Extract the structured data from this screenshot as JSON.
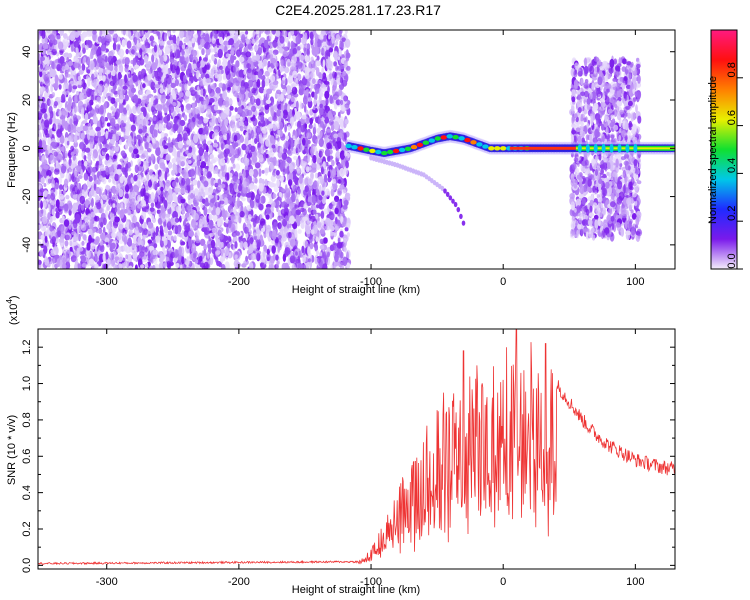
{
  "title": "C2E4.2025.281.17.23.R17",
  "chart_data": [
    {
      "type": "heatmap",
      "name": "spectrogram",
      "xlabel": "Height of straight line (km)",
      "ylabel": "Frequency (Hz)",
      "xlim": [
        -352,
        130
      ],
      "ylim": [
        -50,
        49
      ],
      "xticks": [
        -300,
        -200,
        -100,
        0,
        100
      ],
      "yticks": [
        -40,
        -20,
        0,
        20,
        40
      ],
      "colorbar": {
        "label": "Normalized spectral amplitude",
        "range": [
          0,
          1
        ],
        "ticks": [
          "0.0",
          "0.2",
          "0.4",
          "0.6",
          "0.8"
        ],
        "tick_values": [
          0,
          0.2,
          0.4,
          0.6,
          0.8
        ],
        "stops": [
          "#f4eefb",
          "#7a1aeb",
          "#1f2bff",
          "#00c8e8",
          "#10e030",
          "#e8f000",
          "#ff8000",
          "#ff1010",
          "#ff1a80"
        ]
      },
      "regions": [
        {
          "desc": "broadband noise",
          "x_range": [
            -352,
            -117
          ],
          "f_range": [
            -50,
            49
          ],
          "color": "#7a1aeb"
        },
        {
          "desc": "broadband noise",
          "x_range": [
            52,
            103
          ],
          "f_range": [
            -37,
            37
          ],
          "color": "#7a1aeb"
        }
      ],
      "ridge": {
        "x": [
          -117,
          -100,
          -90,
          -80,
          -70,
          -60,
          -50,
          -40,
          -30,
          -20,
          -10,
          0,
          10,
          30,
          50,
          70,
          100,
          130
        ],
        "f": [
          1,
          -1,
          -2,
          -1,
          0,
          2,
          4,
          5,
          4,
          2,
          0,
          0,
          0,
          0,
          0,
          0,
          0,
          0
        ]
      },
      "branch": {
        "x": [
          -100,
          -80,
          -60,
          -45,
          -35,
          -30
        ],
        "f": [
          -4,
          -7,
          -11,
          -17,
          -24,
          -31
        ]
      }
    },
    {
      "type": "line",
      "name": "snr",
      "xlabel": "Height of straight line (km)",
      "ylabel": "SNR (10 * v/v)",
      "scale_note": "(x10",
      "scale_exp": "4",
      "scale_close": ")",
      "xlim": [
        -352,
        130
      ],
      "ylim": [
        -0.02,
        1.3
      ],
      "xticks": [
        -300,
        -200,
        -100,
        0,
        100
      ],
      "yticks": [
        0.0,
        0.2,
        0.4,
        0.6,
        0.8,
        1.0,
        1.2
      ],
      "ytick_labels": [
        "0.0",
        "0.2",
        "0.4",
        "0.6",
        "0.8",
        "1.0",
        "1.2"
      ],
      "color": "#ee3333",
      "envelope": {
        "x": [
          -352,
          -110,
          -100,
          -90,
          -80,
          -70,
          -60,
          -50,
          -40,
          -30,
          -20,
          -10,
          0,
          10,
          20,
          30,
          40,
          50,
          60,
          70,
          80,
          90,
          100,
          110,
          120,
          130
        ],
        "y": [
          0.01,
          0.02,
          0.08,
          0.22,
          0.38,
          0.5,
          0.62,
          0.72,
          0.82,
          0.88,
          0.92,
          0.95,
          1.0,
          1.05,
          1.08,
          1.1,
          1.0,
          0.9,
          0.8,
          0.72,
          0.66,
          0.62,
          0.58,
          0.56,
          0.54,
          0.53
        ]
      },
      "spikes": [
        {
          "x": 10,
          "y": 1.3
        },
        {
          "x": 32,
          "y": 1.22
        },
        {
          "x": -30,
          "y": 1.18
        },
        {
          "x": -20,
          "y": 1.1
        },
        {
          "x": -45,
          "y": 0.95
        },
        {
          "x": 0,
          "y": 1.02
        }
      ]
    }
  ]
}
